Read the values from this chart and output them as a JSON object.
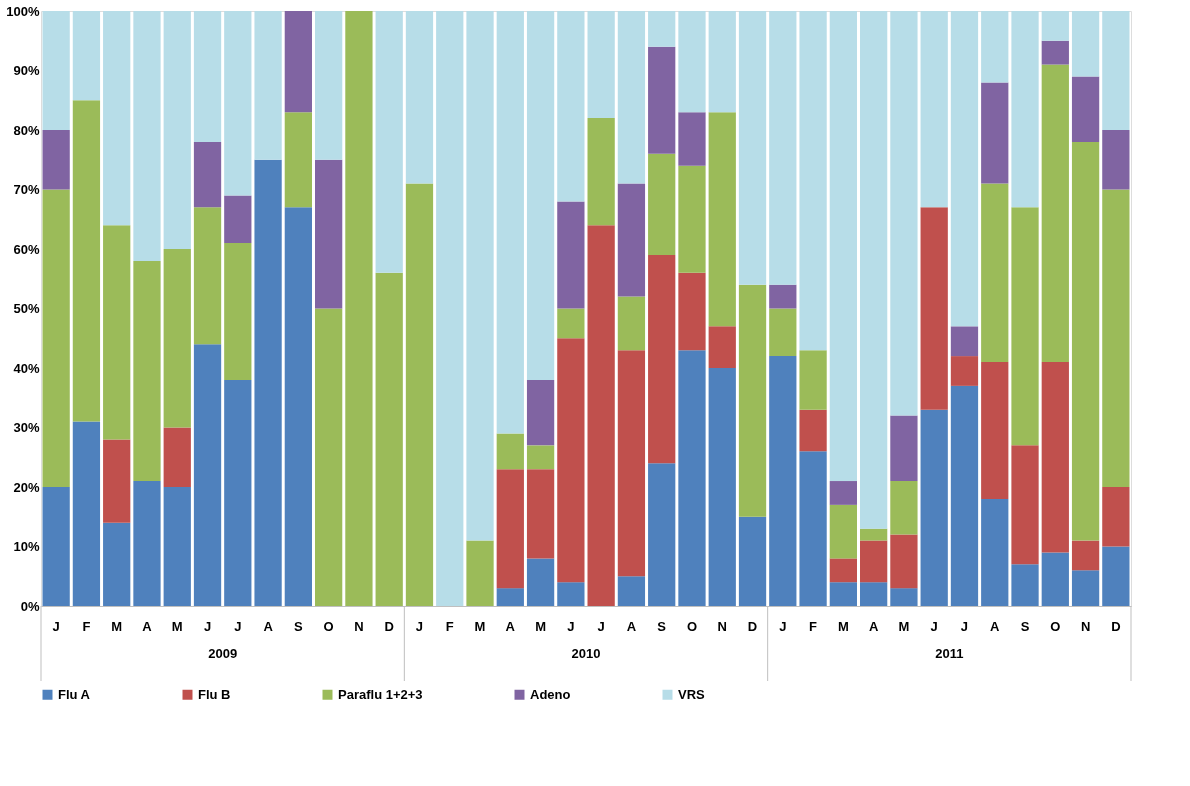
{
  "chart_data": {
    "type": "bar",
    "stacked": true,
    "categories": [
      "J",
      "F",
      "M",
      "A",
      "M",
      "J",
      "J",
      "A",
      "S",
      "O",
      "N",
      "D",
      "J",
      "F",
      "M",
      "A",
      "M",
      "J",
      "J",
      "A",
      "S",
      "O",
      "N",
      "D",
      "J",
      "F",
      "M",
      "A",
      "M",
      "J",
      "J",
      "A",
      "S",
      "O",
      "N",
      "D"
    ],
    "annotations": [
      "2009",
      "2010",
      "2011"
    ],
    "series": [
      {
        "name": "Flu A",
        "color": "#4f81bd",
        "values": [
          20,
          31,
          14,
          21,
          20,
          44,
          38,
          75,
          67,
          0,
          0,
          0,
          0,
          0,
          0,
          3,
          8,
          4,
          0,
          5,
          24,
          43,
          40,
          15,
          42,
          26,
          4,
          4,
          3,
          33,
          37,
          18,
          7,
          9,
          6,
          10
        ]
      },
      {
        "name": "Flu B",
        "color": "#c0504d",
        "values": [
          0,
          0,
          14,
          0,
          10,
          0,
          0,
          0,
          0,
          0,
          0,
          0,
          0,
          0,
          0,
          20,
          15,
          41,
          64,
          38,
          35,
          13,
          7,
          0,
          0,
          7,
          4,
          7,
          9,
          34,
          5,
          23,
          20,
          32,
          5,
          10
        ]
      },
      {
        "name": "Paraflu 1+2+3",
        "color": "#9bbb59",
        "values": [
          50,
          54,
          36,
          37,
          30,
          23,
          23,
          0,
          16,
          50,
          100,
          56,
          71,
          0,
          11,
          6,
          4,
          5,
          18,
          9,
          17,
          18,
          36,
          39,
          8,
          10,
          9,
          2,
          9,
          0,
          0,
          30,
          40,
          50,
          67,
          50
        ]
      },
      {
        "name": "Adeno",
        "color": "#8064a2",
        "values": [
          10,
          0,
          0,
          0,
          0,
          11,
          8,
          0,
          17,
          25,
          0,
          0,
          0,
          0,
          0,
          0,
          11,
          18,
          0,
          19,
          18,
          9,
          0,
          0,
          4,
          0,
          4,
          0,
          11,
          0,
          5,
          17,
          0,
          4,
          11,
          10
        ]
      },
      {
        "name": "VRS",
        "color": "#b7dde8",
        "values": [
          20,
          15,
          36,
          42,
          40,
          22,
          31,
          25,
          0,
          25,
          0,
          44,
          29,
          100,
          89,
          71,
          62,
          32,
          18,
          29,
          6,
          17,
          17,
          46,
          46,
          57,
          79,
          87,
          68,
          33,
          53,
          12,
          33,
          5,
          11,
          20
        ]
      }
    ],
    "ylim": [
      0,
      100
    ],
    "yticks": [
      {
        "value": 0,
        "label": "0%"
      },
      {
        "value": 10,
        "label": "10%"
      },
      {
        "value": 20,
        "label": "20%"
      },
      {
        "value": 30,
        "label": "30%"
      },
      {
        "value": 40,
        "label": "40%"
      },
      {
        "value": 50,
        "label": "50%"
      },
      {
        "value": 60,
        "label": "60%"
      },
      {
        "value": 70,
        "label": "70%"
      },
      {
        "value": 80,
        "label": "80%"
      },
      {
        "value": 90,
        "label": "90%"
      },
      {
        "value": 100,
        "label": "100%"
      }
    ],
    "grid": false,
    "legend": "bottom"
  }
}
